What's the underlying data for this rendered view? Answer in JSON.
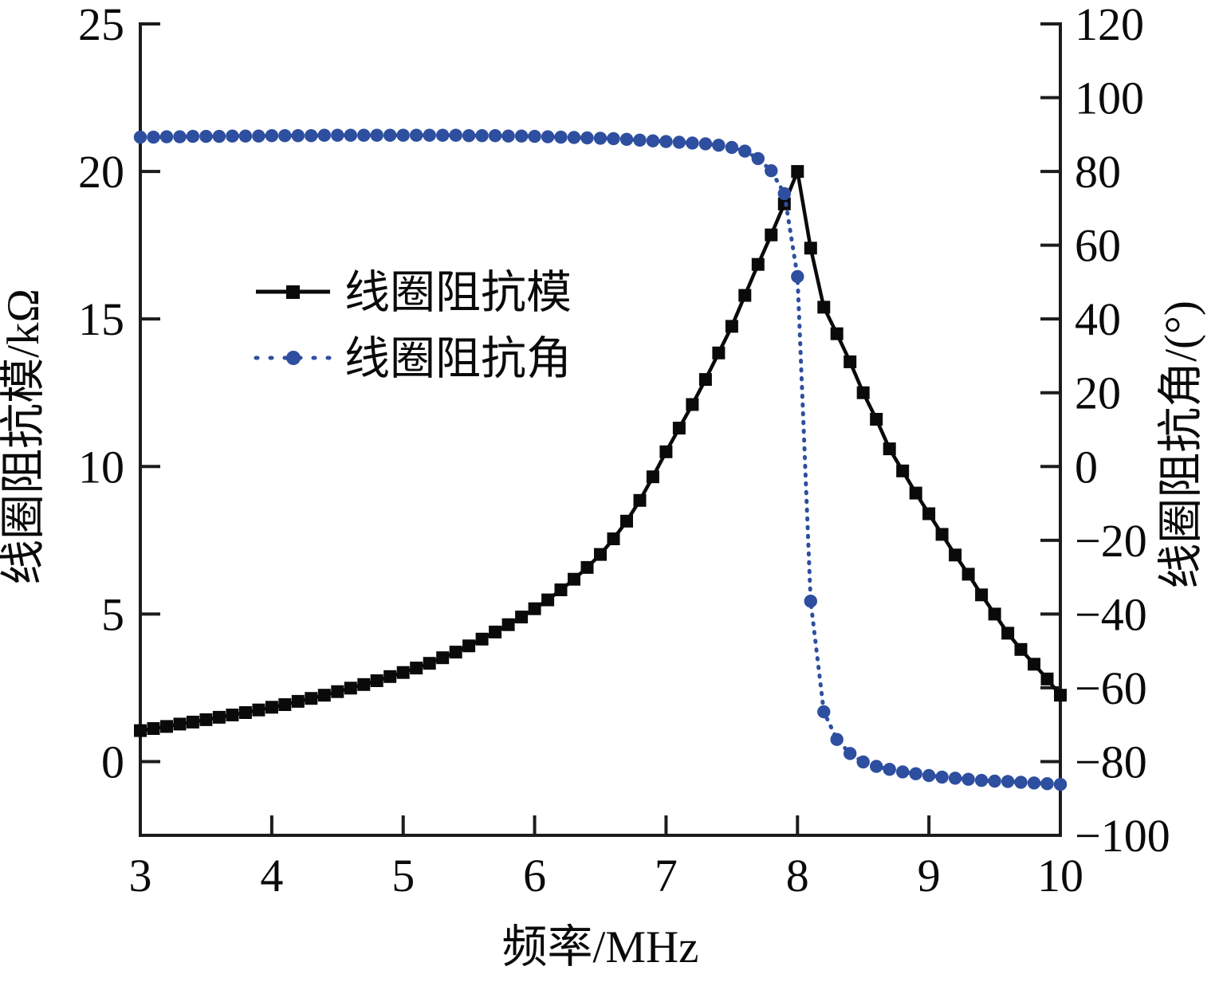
{
  "chart_data": {
    "type": "line",
    "title": "",
    "xlabel": "频率/MHz",
    "ylabel_left": "线圈阻抗模/kΩ",
    "ylabel_right": "线圈阻抗角/(°)",
    "xlim": [
      3,
      10
    ],
    "ylim_left": [
      -2.5,
      25
    ],
    "ylim_right": [
      -100,
      120
    ],
    "xticks": [
      3,
      4,
      5,
      6,
      7,
      8,
      9,
      10
    ],
    "yticks_left": [
      0,
      5,
      10,
      15,
      20,
      25
    ],
    "yticks_right": [
      -100,
      -80,
      -60,
      -40,
      -20,
      0,
      20,
      40,
      60,
      80,
      100,
      120
    ],
    "grid": false,
    "legend_position": "upper-left-inside",
    "axis_color": "#1c1c1c",
    "x": [
      3.0,
      3.1,
      3.2,
      3.3,
      3.4,
      3.5,
      3.6,
      3.7,
      3.8,
      3.9,
      4.0,
      4.1,
      4.2,
      4.3,
      4.4,
      4.5,
      4.6,
      4.7,
      4.8,
      4.9,
      5.0,
      5.1,
      5.2,
      5.3,
      5.4,
      5.5,
      5.6,
      5.7,
      5.8,
      5.9,
      6.0,
      6.1,
      6.2,
      6.3,
      6.4,
      6.5,
      6.6,
      6.7,
      6.8,
      6.9,
      7.0,
      7.1,
      7.2,
      7.3,
      7.4,
      7.5,
      7.6,
      7.7,
      7.8,
      7.9,
      8.0,
      8.1,
      8.2,
      8.3,
      8.4,
      8.5,
      8.6,
      8.7,
      8.8,
      8.9,
      9.0,
      9.1,
      9.2,
      9.3,
      9.4,
      9.5,
      9.6,
      9.7,
      9.8,
      9.9,
      10.0
    ],
    "series": [
      {
        "name": "线圈阻抗模",
        "axis": "left",
        "unit": "kΩ",
        "color": "#0a0a0a",
        "marker": "square",
        "line_style": "solid",
        "values": [
          1.05,
          1.12,
          1.19,
          1.27,
          1.34,
          1.42,
          1.5,
          1.58,
          1.66,
          1.75,
          1.84,
          1.93,
          2.04,
          2.14,
          2.25,
          2.37,
          2.49,
          2.61,
          2.74,
          2.88,
          3.02,
          3.17,
          3.33,
          3.52,
          3.71,
          3.92,
          4.15,
          4.39,
          4.64,
          4.9,
          5.18,
          5.48,
          5.82,
          6.18,
          6.58,
          7.02,
          7.55,
          8.15,
          8.85,
          9.65,
          10.5,
          11.3,
          12.1,
          12.95,
          13.85,
          14.75,
          15.8,
          16.85,
          17.85,
          18.9,
          20.0,
          17.4,
          15.4,
          14.5,
          13.55,
          12.5,
          11.6,
          10.6,
          9.85,
          9.1,
          8.4,
          7.7,
          7.0,
          6.35,
          5.65,
          5.0,
          4.35,
          3.8,
          3.3,
          2.8,
          2.25
        ]
      },
      {
        "name": "线圈阻抗角",
        "axis": "right",
        "unit": "°",
        "color": "#2e4f9f",
        "marker": "circle",
        "line_style": "dotted",
        "values": [
          89.3,
          89.3,
          89.4,
          89.4,
          89.5,
          89.5,
          89.5,
          89.6,
          89.6,
          89.6,
          89.7,
          89.7,
          89.7,
          89.7,
          89.8,
          89.8,
          89.8,
          89.8,
          89.8,
          89.8,
          89.8,
          89.8,
          89.8,
          89.8,
          89.8,
          89.7,
          89.7,
          89.7,
          89.6,
          89.6,
          89.5,
          89.4,
          89.3,
          89.2,
          89.1,
          89.0,
          88.9,
          88.7,
          88.5,
          88.3,
          88.1,
          87.9,
          87.7,
          87.5,
          87.1,
          86.5,
          85.5,
          83.5,
          80.2,
          74.0,
          51.5,
          -36.5,
          -66.5,
          -74.0,
          -77.8,
          -80.1,
          -81.3,
          -82.1,
          -82.8,
          -83.3,
          -83.8,
          -84.2,
          -84.5,
          -84.8,
          -85.1,
          -85.3,
          -85.4,
          -85.6,
          -85.8,
          -86.0,
          -86.2
        ]
      }
    ],
    "legend": {
      "items": [
        {
          "label": "线圈阻抗模"
        },
        {
          "label": "线圈阻抗角"
        }
      ]
    }
  }
}
